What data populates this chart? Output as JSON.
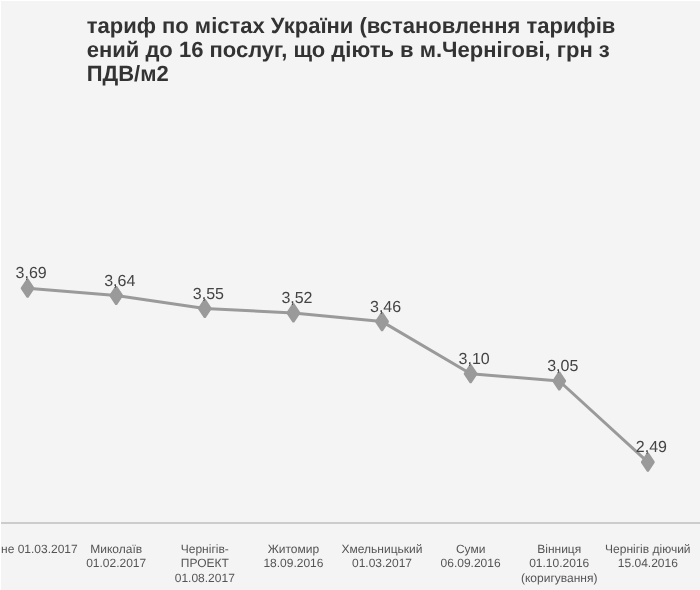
{
  "chart_data": {
    "type": "line",
    "title": "тариф по містах України (встановлення тарифів\nений до 16 послуг, що діють в м.Чернігові, грн з\nПДВ/м2",
    "categories": [
      "не 01.03.2017",
      "Миколаїв\n01.02.2017",
      "Чернігів-\nПРОЕКТ\n01.08.2017",
      "Житомир\n18.09.2016",
      "Хмельницький\n01.03.2017",
      "Суми\n06.09.2016",
      "Вінниця\n01.10.2016\n(коригування)",
      "Чернігів діючий\n15.04.2016"
    ],
    "series": [
      {
        "color": "#9a9a9a",
        "values": [
          3.69,
          3.64,
          3.55,
          3.52,
          3.46,
          3.1,
          3.05,
          2.49
        ],
        "value_labels": [
          "3,69",
          "3,64",
          "3,55",
          "3,52",
          "3,46",
          "3,10",
          "3,05",
          "2,49"
        ]
      }
    ],
    "marker": "diamond",
    "tick_labels": "x"
  }
}
